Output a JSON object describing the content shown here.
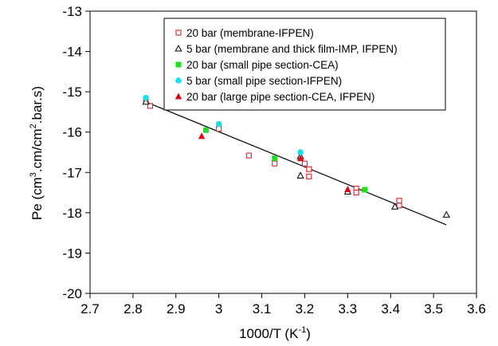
{
  "chart_data": {
    "type": "scatter",
    "xlabel": "1000/T (K",
    "xlabel_sup": "-1",
    "xlabel_end": ")",
    "ylabel": "Pe (cm",
    "ylabel_sup1": "3",
    "ylabel_mid": ".cm/cm",
    "ylabel_sup2": "2",
    "ylabel_end": ".bar.s)",
    "xlim": [
      2.7,
      3.6
    ],
    "ylim": [
      -20,
      -13
    ],
    "x_ticks": [
      "2.7",
      "2.8",
      "2.9",
      "3",
      "3.1",
      "3.2",
      "3.3",
      "3.4",
      "3.5",
      "3.6"
    ],
    "y_ticks": [
      "-13",
      "-14",
      "-15",
      "-16",
      "-17",
      "-18",
      "-19",
      "-20"
    ],
    "grid": false,
    "legend_position": "top-right",
    "series": [
      {
        "name": "20 bar (membrane-IFPEN)",
        "marker": "square-open",
        "color": "#e8202a",
        "points": [
          [
            2.83,
            -15.18
          ],
          [
            2.84,
            -15.35
          ],
          [
            3.0,
            -15.92
          ],
          [
            3.07,
            -16.58
          ],
          [
            3.13,
            -16.78
          ],
          [
            3.2,
            -16.78
          ],
          [
            3.21,
            -16.92
          ],
          [
            3.21,
            -17.1
          ],
          [
            3.32,
            -17.4
          ],
          [
            3.32,
            -17.5
          ],
          [
            3.42,
            -17.7
          ],
          [
            3.42,
            -17.82
          ]
        ]
      },
      {
        "name": "5 bar (membrane and thick film-IMP, IFPEN)",
        "marker": "triangle-open",
        "color": "#000000",
        "points": [
          [
            2.83,
            -15.25
          ],
          [
            3.19,
            -16.6
          ],
          [
            3.19,
            -17.08
          ],
          [
            3.3,
            -17.48
          ],
          [
            3.41,
            -17.85
          ],
          [
            3.53,
            -18.05
          ]
        ]
      },
      {
        "name": "20 bar (small pipe section-CEA)",
        "marker": "square-filled",
        "color": "#1ee01e",
        "points": [
          [
            2.97,
            -15.95
          ],
          [
            3.13,
            -16.65
          ],
          [
            3.34,
            -17.43
          ]
        ]
      },
      {
        "name": "5 bar (small pipe section-IFPEN)",
        "marker": "circle-filled",
        "color": "#18e0e8",
        "points": [
          [
            2.83,
            -15.15
          ],
          [
            3.0,
            -15.8
          ],
          [
            3.19,
            -16.5
          ]
        ]
      },
      {
        "name": "20 bar (large pipe section-CEA, IFPEN)",
        "marker": "triangle-filled",
        "color": "#e8000e",
        "points": [
          [
            2.96,
            -16.1
          ],
          [
            3.19,
            -16.65
          ],
          [
            3.3,
            -17.42
          ]
        ]
      }
    ],
    "trendline": {
      "color": "#000000",
      "points": [
        [
          2.83,
          -15.25
        ],
        [
          3.53,
          -18.3
        ]
      ]
    }
  }
}
